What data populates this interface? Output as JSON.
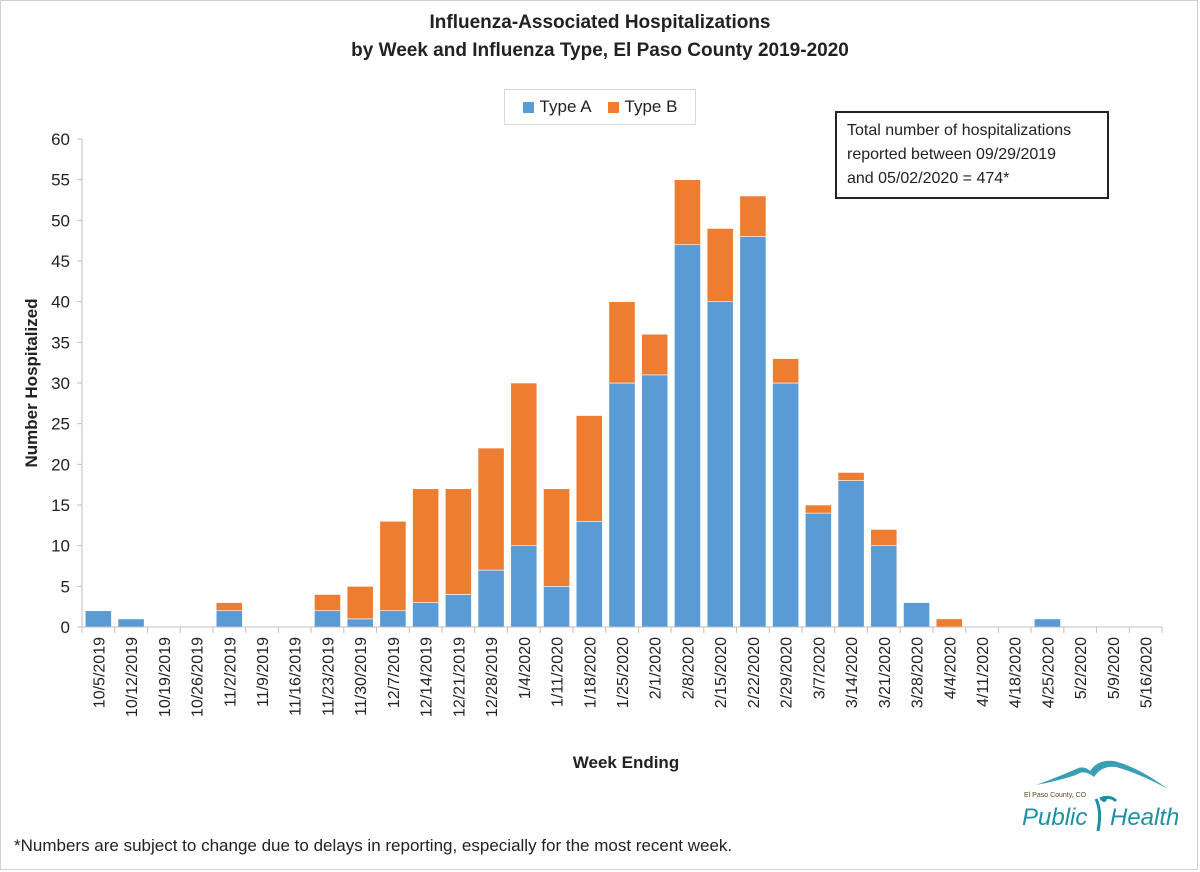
{
  "chart_data": {
    "type": "bar",
    "stacked": true,
    "title": "Influenza-Associated Hospitalizations",
    "subtitle": "by Week and Influenza Type, El Paso County 2019-2020",
    "xlabel": "Week Ending",
    "ylabel": "Number Hospitalized",
    "ylim": [
      0,
      60
    ],
    "yticks": [
      0,
      5,
      10,
      15,
      20,
      25,
      30,
      35,
      40,
      45,
      50,
      55,
      60
    ],
    "grid": false,
    "legend_position": "top-center",
    "categories": [
      "10/5/2019",
      "10/12/2019",
      "10/19/2019",
      "10/26/2019",
      "11/2/2019",
      "11/9/2019",
      "11/16/2019",
      "11/23/2019",
      "11/30/2019",
      "12/7/2019",
      "12/14/2019",
      "12/21/2019",
      "12/28/2019",
      "1/4/2020",
      "1/11/2020",
      "1/18/2020",
      "1/25/2020",
      "2/1/2020",
      "2/8/2020",
      "2/15/2020",
      "2/22/2020",
      "2/29/2020",
      "3/7/2020",
      "3/14/2020",
      "3/21/2020",
      "3/28/2020",
      "4/4/2020",
      "4/11/2020",
      "4/18/2020",
      "4/25/2020",
      "5/2/2020",
      "5/9/2020",
      "5/16/2020"
    ],
    "series": [
      {
        "name": "Type A",
        "color": "#5b9bd5",
        "values": [
          2,
          1,
          0,
          0,
          2,
          0,
          0,
          2,
          1,
          2,
          3,
          4,
          7,
          10,
          5,
          13,
          30,
          31,
          47,
          40,
          48,
          30,
          14,
          18,
          10,
          3,
          0,
          0,
          0,
          1,
          0,
          0,
          0
        ]
      },
      {
        "name": "Type B",
        "color": "#ed7d31",
        "values": [
          0,
          0,
          0,
          0,
          1,
          0,
          0,
          2,
          4,
          11,
          14,
          13,
          15,
          20,
          12,
          13,
          10,
          5,
          8,
          9,
          5,
          3,
          1,
          1,
          2,
          0,
          1,
          0,
          0,
          0,
          0,
          0,
          0
        ]
      }
    ],
    "annotation": {
      "lines": [
        "Total number of hospitalizations",
        "reported between 09/29/2019",
        "and 05/02/2020 = 474*"
      ]
    }
  },
  "footnote": "*Numbers are subject to change due to delays in reporting, especially for the most recent week.",
  "logo": {
    "county": "El Paso County, CO",
    "word1": "Public",
    "word2": "Health"
  }
}
